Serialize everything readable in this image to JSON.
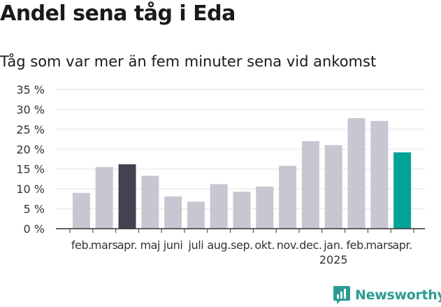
{
  "chart_data": {
    "type": "bar",
    "title": "Andel sena tåg i Eda",
    "subtitle": "Tåg som var mer än fem minuter sena vid ankomst",
    "categories": [
      "feb.",
      "mars",
      "apr.",
      "maj",
      "juni",
      "juli",
      "aug.",
      "sep.",
      "okt.",
      "nov.",
      "dec.",
      "jan.",
      "feb.",
      "mars",
      "apr."
    ],
    "year_label": "2025",
    "year_label_category_index": 11,
    "values": [
      9.0,
      15.5,
      16.2,
      13.3,
      8.1,
      6.8,
      11.2,
      9.3,
      10.6,
      15.8,
      22.0,
      21.0,
      27.8,
      27.1,
      19.2
    ],
    "highlight": [
      {
        "index": 2,
        "color": "#43424e"
      },
      {
        "index": 14,
        "color": "#00a396"
      }
    ],
    "bar_color": "#c8c6d1",
    "ylim": [
      0,
      35
    ],
    "yticks": [
      0,
      5,
      10,
      15,
      20,
      25,
      30,
      35
    ],
    "ytick_labels": [
      "0 %",
      "5 %",
      "10 %",
      "15 %",
      "20 %",
      "25 %",
      "30 %",
      "35 %"
    ],
    "xlabel": "",
    "ylabel": "",
    "grid": true,
    "legend": "none"
  },
  "branding": {
    "logo_text": "Newsworthy",
    "logo_icon": "newsworthy-chart-icon",
    "accent_color": "#2c9b93"
  }
}
